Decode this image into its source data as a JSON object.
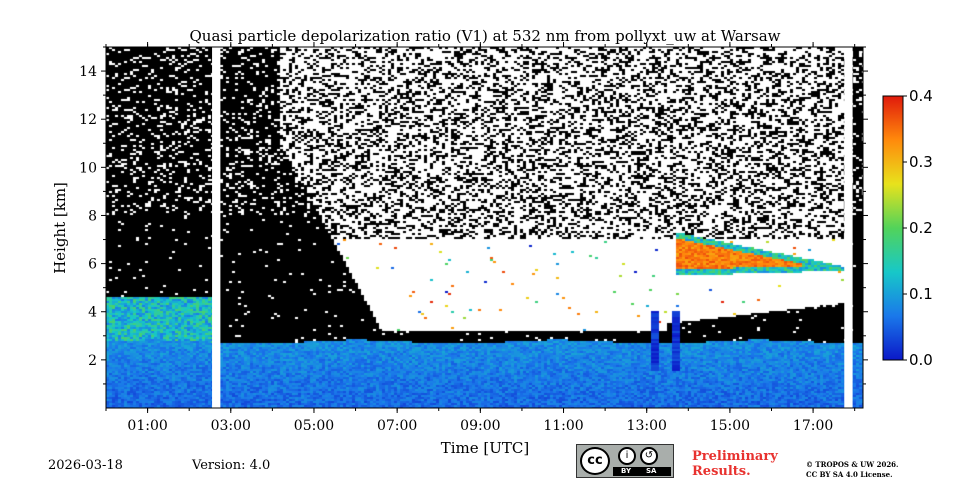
{
  "chart_data": {
    "type": "heatmap",
    "title": "Quasi particle depolarization ratio (V1) at 532 nm from pollyxt_uw at Warsaw",
    "xlabel": "Time [UTC]",
    "ylabel": "Height [km]",
    "xlim": [
      0,
      18.2
    ],
    "ylim": [
      0,
      15
    ],
    "x_ticks": [
      {
        "value": 1,
        "label": "01:00"
      },
      {
        "value": 3,
        "label": "03:00"
      },
      {
        "value": 5,
        "label": "05:00"
      },
      {
        "value": 7,
        "label": "07:00"
      },
      {
        "value": 9,
        "label": "09:00"
      },
      {
        "value": 11,
        "label": "11:00"
      },
      {
        "value": 13,
        "label": "13:00"
      },
      {
        "value": 15,
        "label": "15:00"
      },
      {
        "value": 17,
        "label": "17:00"
      }
    ],
    "y_ticks": [
      {
        "value": 2,
        "label": "2"
      },
      {
        "value": 4,
        "label": "4"
      },
      {
        "value": 6,
        "label": "6"
      },
      {
        "value": 8,
        "label": "8"
      },
      {
        "value": 10,
        "label": "10"
      },
      {
        "value": 12,
        "label": "12"
      },
      {
        "value": 14,
        "label": "14"
      }
    ],
    "colorbar": {
      "range": [
        0.0,
        0.4
      ],
      "ticks": [
        {
          "value": 0.0,
          "label": "0.0"
        },
        {
          "value": 0.1,
          "label": "0.1"
        },
        {
          "value": 0.2,
          "label": "0.2"
        },
        {
          "value": 0.3,
          "label": "0.3"
        },
        {
          "value": 0.4,
          "label": "0.4"
        }
      ],
      "colormap": [
        "#0b18c8",
        "#1a78ea",
        "#17c8c8",
        "#52d35a",
        "#e8e21c",
        "#ff8a0c",
        "#e01a0c"
      ]
    },
    "no_data_periods_hours": [
      [
        2.55,
        2.75
      ],
      [
        17.75,
        17.95
      ]
    ],
    "features": [
      {
        "name": "boundary-layer",
        "time_range": [
          0,
          18.2
        ],
        "height_range_km": [
          0,
          2.8
        ],
        "value_range": [
          0.02,
          0.12
        ]
      },
      {
        "name": "residual-layer-aerosol",
        "time_range": [
          0,
          2.6
        ],
        "height_range_km": [
          2.8,
          4.6
        ],
        "value_range": [
          0.08,
          0.18
        ]
      },
      {
        "name": "dust-layer",
        "time_range": [
          13.7,
          17.8
        ],
        "height_range_km": [
          5.5,
          7.4
        ],
        "value_range": [
          0.3,
          0.37
        ]
      }
    ]
  },
  "footer": {
    "date": "2026-03-18",
    "version": "Version: 4.0",
    "license_badge": {
      "cc": "cc",
      "by": "BY",
      "sa": "SA"
    },
    "preliminary_line1": "Preliminary",
    "preliminary_line2": "Results.",
    "copyright_line1": "© TROPOS & UW 2026.",
    "copyright_line2": "CC BY SA 4.0 License."
  },
  "colors": {
    "background": "#ffffff",
    "no_data": "#000000",
    "clear": "#ffffff"
  }
}
